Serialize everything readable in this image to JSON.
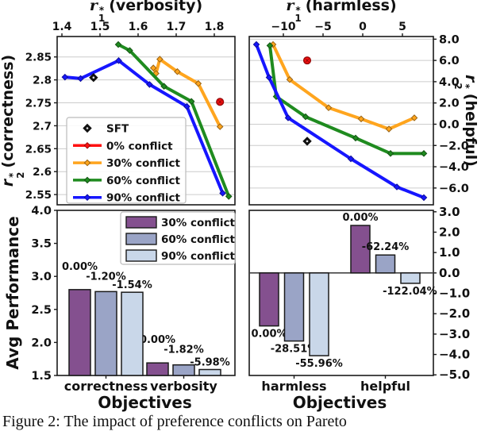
{
  "caption": "Figure 2: The impact of preference conflicts on Pareto",
  "colors": {
    "sft": "#111111",
    "conflict0": "#ff1010",
    "conflict30": "#ffa51e",
    "conflict60": "#1f8b1f",
    "conflict90": "#1616ff",
    "bar30": "#84508f",
    "bar60": "#9aa4c6",
    "bar90": "#c9d7e9",
    "grid": "#cccccc"
  },
  "axis_titles": {
    "tl_top": {
      "sym": "r",
      "sub": "1",
      "sup": "*",
      "rest": "(verbosity)"
    },
    "tr_top": {
      "sym": "r",
      "sub": "1",
      "sup": "*",
      "rest": "(harmless)"
    },
    "tl_left": {
      "sym": "r",
      "sub": "2",
      "sup": "*",
      "rest": "(correctness)"
    },
    "tr_right": {
      "sym": "r",
      "sub": "2",
      "sup": "*",
      "rest": "(helpful)"
    },
    "bl_left": "Avg Performance"
  },
  "chart_data": [
    {
      "id": "pareto-verbosity-correctness",
      "type": "line",
      "xlabel": "r1* (verbosity)",
      "ylabel": "r2* (correctness)",
      "xlim": [
        1.3875,
        1.8542
      ],
      "ylim": [
        2.5277,
        2.8945
      ],
      "xticks": [
        1.4,
        1.5,
        1.6,
        1.7,
        1.8
      ],
      "yticks": [
        2.85,
        2.8,
        2.75,
        2.7,
        2.65,
        2.6,
        2.55
      ],
      "grid": "horizontal",
      "legend": {
        "position": "lower left",
        "entries": [
          {
            "label": "SFT",
            "kind": "marker",
            "color": "#111111"
          },
          {
            "label": "0% conflict",
            "kind": "line",
            "color": "#ff1010"
          },
          {
            "label": "30% conflict",
            "kind": "line",
            "color": "#ffa51e"
          },
          {
            "label": "60% conflict",
            "kind": "line",
            "color": "#1f8b1f"
          },
          {
            "label": "90% conflict",
            "kind": "line",
            "color": "#1616ff"
          }
        ]
      },
      "points": [
        {
          "name": "SFT",
          "x": 1.483,
          "y": 2.805,
          "marker": "diamond",
          "color": "#111111"
        },
        {
          "name": "0% conflict",
          "x": 1.815,
          "y": 2.752,
          "marker": "circle-x",
          "color": "#ff1010"
        }
      ],
      "series": [
        {
          "name": "30% conflict",
          "color": "#ffa51e",
          "data": [
            [
              1.64,
              2.826
            ],
            [
              1.647,
              2.814
            ],
            [
              1.657,
              2.845
            ],
            [
              1.703,
              2.818
            ],
            [
              1.758,
              2.792
            ],
            [
              1.815,
              2.698
            ]
          ]
        },
        {
          "name": "60% conflict",
          "color": "#1f8b1f",
          "data": [
            [
              1.548,
              2.877
            ],
            [
              1.578,
              2.864
            ],
            [
              1.668,
              2.786
            ],
            [
              1.74,
              2.753
            ],
            [
              1.838,
              2.546
            ]
          ]
        },
        {
          "name": "90% conflict",
          "color": "#1616ff",
          "data": [
            [
              1.408,
              2.806
            ],
            [
              1.449,
              2.803
            ],
            [
              1.549,
              2.842
            ],
            [
              1.63,
              2.79
            ],
            [
              1.728,
              2.742
            ],
            [
              1.822,
              2.553
            ]
          ]
        }
      ]
    },
    {
      "id": "pareto-harmless-helpful",
      "type": "line",
      "xlabel": "r1* (harmless)",
      "ylabel": "r2* (helpful)",
      "xlim": [
        -14.3,
        8.9
      ],
      "ylim": [
        -7.58,
        8.25
      ],
      "xticks": [
        -10,
        -5,
        0,
        5
      ],
      "yticks": [
        8,
        6,
        4,
        2,
        0,
        -2,
        -4,
        -6
      ],
      "grid": "horizontal",
      "points": [
        {
          "name": "SFT",
          "x": -7.0,
          "y": -1.6,
          "marker": "diamond",
          "color": "#111111"
        },
        {
          "name": "0% conflict",
          "x": -7.0,
          "y": 6.0,
          "marker": "circle-x",
          "color": "#ff1010"
        }
      ],
      "series": [
        {
          "name": "30% conflict",
          "color": "#ffa51e",
          "data": [
            [
              -11.3,
              7.5
            ],
            [
              -9.2,
              4.2
            ],
            [
              -4.3,
              1.55
            ],
            [
              -0.2,
              0.5
            ],
            [
              3.3,
              -0.45
            ],
            [
              6.5,
              0.6
            ]
          ]
        },
        {
          "name": "60% conflict",
          "color": "#1f8b1f",
          "data": [
            [
              -11.7,
              7.4
            ],
            [
              -10.9,
              2.6
            ],
            [
              -7.2,
              0.7
            ],
            [
              -0.9,
              -1.3
            ],
            [
              3.5,
              -2.75
            ],
            [
              7.7,
              -2.75
            ]
          ]
        },
        {
          "name": "90% conflict",
          "color": "#1616ff",
          "data": [
            [
              -13.4,
              7.5
            ],
            [
              -11.8,
              4.4
            ],
            [
              -9.4,
              0.6
            ],
            [
              -1.5,
              -3.25
            ],
            [
              4.3,
              -5.9
            ],
            [
              7.7,
              -6.9
            ]
          ]
        }
      ]
    },
    {
      "id": "avg-performance-correctness-verbosity",
      "type": "bar",
      "xlabel": "Objectives",
      "ylabel": "Avg Performance",
      "categories": [
        "correctness",
        "verbosity"
      ],
      "ylim": [
        1.5,
        4.0
      ],
      "yticks": [
        4.0,
        3.5,
        3.0,
        2.5,
        2.0,
        1.5
      ],
      "legend": {
        "position": "upper right",
        "entries": [
          {
            "label": "30% conflict",
            "color": "#84508f"
          },
          {
            "label": "60% conflict",
            "color": "#9aa4c6"
          },
          {
            "label": "90% conflict",
            "color": "#c9d7e9"
          }
        ]
      },
      "series": [
        {
          "name": "30% conflict",
          "color": "#84508f",
          "values": [
            2.8,
            1.69
          ],
          "labels": [
            "0.00%",
            "0.00%"
          ]
        },
        {
          "name": "60% conflict",
          "color": "#9aa4c6",
          "values": [
            2.77,
            1.66
          ],
          "labels": [
            "-1.20%",
            "-1.82%"
          ]
        },
        {
          "name": "90% conflict",
          "color": "#c9d7e9",
          "values": [
            2.76,
            1.59
          ],
          "labels": [
            "-1.54%",
            "-5.98%"
          ]
        }
      ]
    },
    {
      "id": "avg-performance-harmless-helpful",
      "type": "bar",
      "xlabel": "Objectives",
      "categories": [
        "harmless",
        "helpful"
      ],
      "ylim": [
        -5.03,
        3.07
      ],
      "yticks": [
        3.0,
        2.0,
        1.0,
        0.0,
        -1.0,
        -2.0,
        -3.0,
        -4.0,
        -5.0
      ],
      "series": [
        {
          "name": "30% conflict",
          "color": "#84508f",
          "values": [
            -2.6,
            2.33
          ],
          "labels": [
            "0.00%",
            "0.00%"
          ]
        },
        {
          "name": "60% conflict",
          "color": "#9aa4c6",
          "values": [
            -3.34,
            0.88
          ],
          "labels": [
            "-28.51%",
            "-62.24%"
          ]
        },
        {
          "name": "90% conflict",
          "color": "#c9d7e9",
          "values": [
            -4.06,
            -0.51
          ],
          "labels": [
            "-55.96%",
            "-122.04%"
          ]
        }
      ]
    }
  ]
}
